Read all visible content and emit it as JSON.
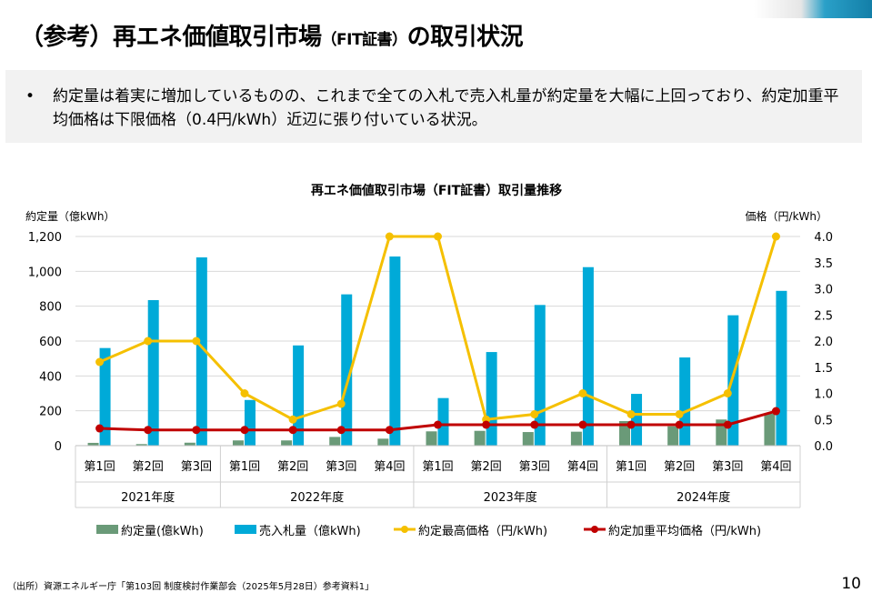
{
  "header": {
    "title_main": "（参考）再エネ価値取引市場",
    "title_small": "（FIT証書）",
    "title_tail": "の取引状況"
  },
  "bullet": {
    "text": "約定量は着実に増加しているものの、これまで全ての入札で売入札量が約定量を大幅に上回っており、約定加重平均価格は下限価格（0.4円/kWh）近辺に張り付いている状況。"
  },
  "footer": {
    "source": "（出所）資源エネルギー庁「第103回 制度検討作業部会（2025年5月28日）参考資料1」",
    "page": "10"
  },
  "chart_data": {
    "type": "bar+line",
    "title": "再エネ価値取引市場（FIT証書）取引量推移",
    "ylabel_left": "約定量（億kWh）",
    "ylabel_right": "価格（円/kWh）",
    "ylim_left": [
      0,
      1200
    ],
    "ylim_right": [
      0,
      4.0
    ],
    "yticks_left": [
      "0",
      "200",
      "400",
      "600",
      "800",
      "1,000",
      "1,200"
    ],
    "yticks_right": [
      "0.0",
      "0.5",
      "1.0",
      "1.5",
      "2.0",
      "2.5",
      "3.0",
      "3.5",
      "4.0"
    ],
    "grid": true,
    "legend_position": "bottom",
    "groups": [
      {
        "label": "2021年度",
        "categories": [
          "第1回",
          "第2回",
          "第3回"
        ]
      },
      {
        "label": "2022年度",
        "categories": [
          "第1回",
          "第2回",
          "第3回",
          "第4回"
        ]
      },
      {
        "label": "2023年度",
        "categories": [
          "第1回",
          "第2回",
          "第3回",
          "第4回"
        ]
      },
      {
        "label": "2024年度",
        "categories": [
          "第1回",
          "第2回",
          "第3回",
          "第4回"
        ]
      }
    ],
    "series": [
      {
        "name": "約定量(億kWh)",
        "type": "bar",
        "axis": "left",
        "color": "#6a9a78",
        "values": [
          16,
          9,
          17,
          30,
          30,
          50,
          40,
          82,
          85,
          78,
          80,
          141,
          111,
          150,
          184
        ]
      },
      {
        "name": "売入札量（億kWh)",
        "type": "bar",
        "axis": "left",
        "color": "#00aad8",
        "values": [
          560,
          835,
          1080,
          262,
          575,
          868,
          1085,
          273,
          537,
          807,
          1024,
          297,
          506,
          748,
          888
        ]
      },
      {
        "name": "約定最高価格（円/kWh)",
        "type": "line",
        "axis": "right",
        "color": "#f5c000",
        "values": [
          1.6,
          2.0,
          2.0,
          1.0,
          0.5,
          0.8,
          4.0,
          4.0,
          0.5,
          0.6,
          1.0,
          0.6,
          0.6,
          1.0,
          4.0
        ]
      },
      {
        "name": "約定加重平均価格（円/kWh)",
        "type": "line",
        "axis": "right",
        "color": "#c00000",
        "values": [
          0.33,
          0.3,
          0.3,
          0.3,
          0.3,
          0.3,
          0.3,
          0.4,
          0.4,
          0.4,
          0.4,
          0.4,
          0.4,
          0.4,
          0.66
        ]
      }
    ]
  }
}
